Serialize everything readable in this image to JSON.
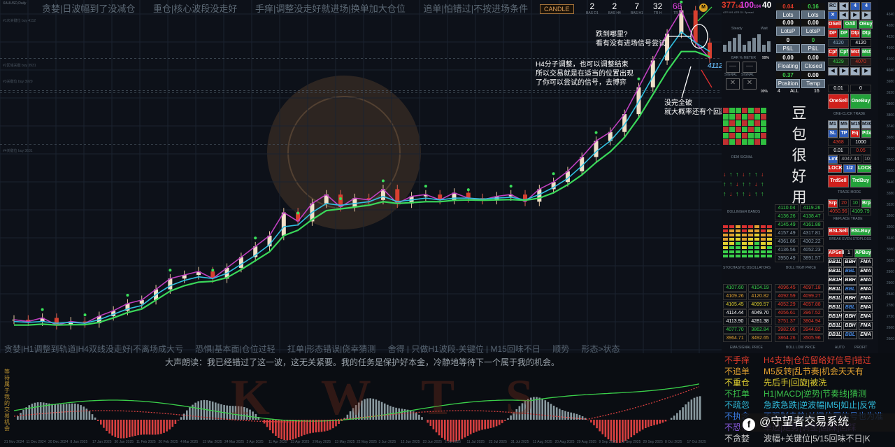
{
  "chart": {
    "symbol": "XAUUSD,Daily",
    "top_rules": [
      "贪婪|日波幅到了没减仓",
      "重仓|核心波段没走好",
      "手痒|调整没走好就进场|换单加大仓位",
      "追单|怕错过|不按进场条件"
    ],
    "candle_button": "CANDLE",
    "stats": [
      {
        "value": "2",
        "label": "BAS D1"
      },
      {
        "value": "2",
        "label": "BAS H4"
      },
      {
        "value": "7",
        "label": "BAS H1"
      },
      {
        "value": "32",
        "label": "TR H"
      },
      {
        "value": "68",
        "label": "TR L"
      }
    ],
    "atr": {
      "a": "377",
      "a_sub": "148",
      "b": "100",
      "b_sub": "104",
      "c": "40",
      "label": "ATR W1   ATR D1   Spread"
    },
    "annotations": {
      "a1_line1": "跌到哪里?",
      "a1_line2": "看有没有进场信号尝试",
      "a2_line1": "H4分子调整，也可以调整结束",
      "a2_line2": "所以交易就是在适当的位置出现",
      "a2_line3": "了你可以尝试的信号，去博弈",
      "a3_line1": "没完全破",
      "a3_line2": "就大概率还有个回踩"
    },
    "price_tag": "4112",
    "bottom_rules": [
      "贪婪|H1调整到轨道|H4双线没走好|不离场成大亏",
      "恐惧|基本面|仓位过轻",
      "扛单|形态错误|侥幸猜测",
      "舍得 | 只做H1波段-关键位 | M15回味不日",
      "顺势",
      "形态>状态"
    ],
    "left_levels": [
      "#1次关键位 buy 4112",
      "#2区域关键 buy 3931",
      "#3关键位 buy 3920",
      "#4关键位 buy 3631"
    ]
  },
  "axis": [
    "4340",
    "4280",
    "4220",
    "4160",
    "4100",
    "4040",
    "3980",
    "3920",
    "3860",
    "3800",
    "3740",
    "3680",
    "3620",
    "3560",
    "3500",
    "3440",
    "3380",
    "3320",
    "3260",
    "3200",
    "3140",
    "3080",
    "3020",
    "2960",
    "2900",
    "2840",
    "2780",
    "2720",
    "2660",
    "2600"
  ],
  "panel": {
    "lots_a": {
      "value": "0.04",
      "label": "Lots"
    },
    "lots_b": {
      "value": "0.16",
      "label": "Lots"
    },
    "lotsp": {
      "value": "0.00",
      "label": "LotsP"
    },
    "lotsp2": {
      "value": "0.00",
      "label": "LotsP"
    },
    "pl1": {
      "value": "0",
      "label": "P&L"
    },
    "pl2": {
      "value": "0",
      "label": "P&L"
    },
    "floating": {
      "value": "0.00",
      "label": "Floating"
    },
    "closed": {
      "value": "0.00",
      "label": "Closed"
    },
    "position": {
      "value": "0.37",
      "label": "Position"
    },
    "temp": {
      "value": "0.00",
      "label": "Temp"
    },
    "steady": "Steady",
    "wait": "Wait",
    "bar_meter": "BAR % METER",
    "signal_a": "SIGNAL",
    "signal_b": "SIGNAL",
    "count4": "4",
    "all": "ALL",
    "count16": "16",
    "pct1": "99%",
    "pct2": "99%",
    "btn_rc": "RC",
    "btn_4": "4",
    "btn_4b": "4",
    "osell": "OSell",
    "oall": "OAll",
    "obuy": "OBuy",
    "dp": "DP",
    "dp2": "DP",
    "dtp": "Dtp",
    "dtp2": "Dtp",
    "cpf": "Cpf",
    "cpf2": "Cpf",
    "mst": "Mst",
    "mst2": "Mst",
    "val4120": "4120",
    "val4120b": "4120",
    "val4129": "4129",
    "val4070": "4070",
    "val001": "0.01",
    "val001b": "0",
    "one_sell": "OneSell",
    "one_buy": "OneBuy",
    "one_click": "ONE-CLICK  TRADE",
    "m1": "M1",
    "m5": "M5",
    "m15": "M15",
    "m30": "M30",
    "sl": "SL",
    "tp": "TP",
    "eq": "Eq",
    "pdx": "Pdx",
    "v4368": "4368",
    "v1000": "1000",
    "v001c": "0.01",
    "v005": "0.05",
    "lmt": "Lmt",
    "v4047": "4047.44",
    "v10": "10",
    "lock": "LOCK",
    "half": "1/2",
    "lock2": "LOCK",
    "trd_sell": "TrdSell",
    "trd_buy": "TrdBuy",
    "trade_mode": "TRADE  MODE",
    "srp": "Srp",
    "v20": "20",
    "v10b": "10",
    "brp": "Brp",
    "v4050": "4050.96",
    "v4109": "4109.79",
    "replace": "REPLACE   TRADE",
    "bsl_sell": "BSLSell",
    "bsl_buy": "BSLBuy",
    "breakeven": "BREAK EVEN STOPLOSS",
    "ap_sell": "APSell",
    "ap1": "1",
    "ap_buy": "APBuy",
    "dem_signal": "DEM   SIGNAL",
    "bollinger": "BOLLINGER  BANDS",
    "stochastic": "STOCHASTIC OSCILLATORS",
    "boll_hl": "BOLL HIGH PRICE",
    "ema_signal": "EMA SIGNAL PRICE",
    "boll_low": "BOLL LOW PRICE",
    "auto": "AUTO",
    "profit": "PROFIT",
    "big_text": [
      "豆",
      "包",
      "很",
      "好",
      "用"
    ],
    "boll_col_a": [
      "4110.04",
      "4136.26",
      "4145.49",
      "4157.49",
      "4361.86",
      "4136.56",
      "3950.49"
    ],
    "boll_col_b": [
      "4119.26",
      "4138.47",
      "4161.88",
      "4317.81",
      "4302.22",
      "4052.23",
      "3891.57"
    ],
    "ema_col_a": [
      "4107.60",
      "4109.26",
      "4105.45",
      "4114.44",
      "4113.90",
      "4077.70",
      "3964.71"
    ],
    "ema_col_b": [
      "4104.19",
      "4120.82",
      "4099.57",
      "4049.70",
      "4281.38",
      "3862.84",
      "3492.65"
    ],
    "low_col_a": [
      "4096.45",
      "4092.59",
      "4052.29",
      "4056.61",
      "3751.37",
      "3982.06",
      "3864.26"
    ],
    "low_col_b": [
      "4097.18",
      "4099.27",
      "4057.88",
      "3967.52",
      "3804.94",
      "3944.82",
      "3505.96"
    ],
    "bb_rows": [
      [
        "BB1L",
        "BBH",
        "FMA"
      ],
      [
        "BB1L",
        "BBL",
        "EMA"
      ],
      [
        "BB1H",
        "BBH",
        "EMA"
      ],
      [
        "BB1L",
        "BBL",
        "EMA"
      ],
      [
        "BB1L",
        "BBH",
        "EMA"
      ],
      [
        "BB1L",
        "BBL",
        "EMA"
      ],
      [
        "BB1H",
        "BBH",
        "EMA"
      ],
      [
        "BB1L",
        "BBH",
        "FMA"
      ],
      [
        "BB1L",
        "BBL",
        "EMA"
      ]
    ]
  },
  "indicator": {
    "header": "大声朗读：我已经错过了这一波，这无关紧要。我的任务是保护好本金，冷静地等待下一个属于我的机会。",
    "watermark": "K W T S",
    "side_text": "等待属于我的交易机会",
    "dates": [
      "21 Nov 2024",
      "11 Dec 2024",
      "20 Dec 2024",
      "8 Jan 2025",
      "17 Jan 2025",
      "30 Jan 2025",
      "11 Feb 2025",
      "20 Feb 2025",
      "4 Mar 2025",
      "13 Mar 2025",
      "24 Mar 2025",
      "2 Apr 2025",
      "11 Apr 2025",
      "23 Apr 2025",
      "2 May 2025",
      "13 May 2025",
      "22 May 2025",
      "3 Jun 2025",
      "12 Jun 2025",
      "23 Jun 2025",
      "2 Jul 2025",
      "11 Jul 2025",
      "22 Jul 2025",
      "31 Jul 2025",
      "11 Aug 2025",
      "20 Aug 2025",
      "29 Aug 2025",
      "9 Sep 2025",
      "18 Sep 2025",
      "29 Sep 2025",
      "8 Oct 2025",
      "17 Oct 2025"
    ]
  },
  "rules": [
    {
      "k": "不手痒",
      "v": "H4支持|仓位留给好信号|错过",
      "ck": "#e03a2a",
      "cv": "#e03a2a"
    },
    {
      "k": "不追单",
      "v": "M5反转|乱节奏|机会天天有",
      "ck": "#e0a030",
      "cv": "#e0a030"
    },
    {
      "k": "不重仓",
      "v": "先后手|回旋|被洗",
      "ck": "#e0d030",
      "cv": "#e0d030"
    },
    {
      "k": "不扛单",
      "v": "H1|MACD|逆势|节奏线|猜测",
      "ck": "#3ac04a",
      "cv": "#3ac04a"
    },
    {
      "k": "不疏忽",
      "v": "急跌急跌|逆波幅|M5|如止|反常",
      "ck": "#2fb8d8",
      "cv": "#2fb8d8"
    },
    {
      "k": "不执念",
      "v": "不强制走势|关键位置信号也为准",
      "ck": "#3a7ae0",
      "cv": "#3a7ae0"
    },
    {
      "k": "不恐惧",
      "v": "单边|走势|调整|回踩|回踩",
      "ck": "#8a5ae0",
      "cv": "#8a5ae0"
    },
    {
      "k": "不贪婪",
      "v": "波幅+关键位|5/15回味不日|K",
      "ck": "#cccccc",
      "cv": "#cccccc"
    }
  ],
  "footer_brand": "@守望者交易系统",
  "chart_data": {
    "type": "line",
    "title": "",
    "x_start": "21 Nov 2024",
    "x_end": "17 Oct 2025",
    "ylim": [
      2560,
      4360
    ],
    "series": [
      {
        "values": [
          2650,
          2640,
          2660,
          2620,
          2640,
          2630,
          2670,
          2700,
          2740,
          2760,
          2820,
          2880,
          2900,
          2920,
          2880,
          2940,
          3000,
          3060,
          3120,
          3250,
          3200,
          3300,
          3350,
          3280,
          3330,
          3320,
          3380,
          3300,
          3340,
          3350,
          3320,
          3360,
          3330,
          3320,
          3340,
          3350,
          3310,
          3380,
          3420,
          3480,
          3560,
          3650,
          3700,
          3800,
          3950,
          4100,
          4250,
          4380,
          4200,
          4112
        ]
      },
      {
        "values": [
          2640,
          2635,
          2640,
          2630,
          2635,
          2630,
          2650,
          2680,
          2710,
          2730,
          2790,
          2840,
          2870,
          2890,
          2880,
          2910,
          2960,
          3010,
          3070,
          3170,
          3180,
          3250,
          3300,
          3290,
          3300,
          3310,
          3340,
          3310,
          3320,
          3330,
          3320,
          3330,
          3330,
          3325,
          3330,
          3335,
          3320,
          3350,
          3390,
          3440,
          3510,
          3590,
          3650,
          3740,
          3870,
          4010,
          4150,
          4260,
          4200,
          4150
        ]
      },
      {
        "values": [
          2620,
          2620,
          2625,
          2620,
          2622,
          2622,
          2635,
          2660,
          2690,
          2710,
          2760,
          2810,
          2840,
          2860,
          2865,
          2885,
          2930,
          2980,
          3030,
          3120,
          3150,
          3210,
          3260,
          3270,
          3280,
          3290,
          3310,
          3300,
          3305,
          3310,
          3310,
          3318,
          3320,
          3318,
          3320,
          3322,
          3318,
          3330,
          3360,
          3405,
          3460,
          3530,
          3590,
          3670,
          3780,
          3910,
          4040,
          4150,
          4150,
          4120
        ]
      }
    ]
  }
}
